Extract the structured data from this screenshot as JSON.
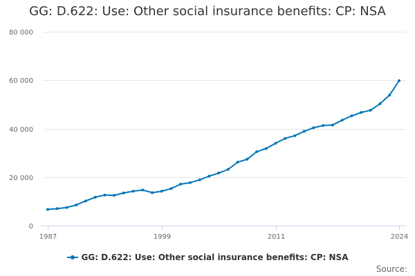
{
  "chart_data": {
    "type": "line",
    "title": "GG: D.622: Use: Other social insurance benefits: CP: NSA",
    "xlabel": "",
    "ylabel": "",
    "xlim": [
      1987,
      2024
    ],
    "ylim": [
      0,
      80000
    ],
    "y_ticks": [
      0,
      20000,
      40000,
      60000,
      80000
    ],
    "y_tick_labels": [
      "0",
      "20 000",
      "40 000",
      "60 000",
      "80 000"
    ],
    "x_ticks": [
      1987,
      1999,
      2011,
      2024
    ],
    "x_tick_labels": [
      "1987",
      "1999",
      "2011",
      "2024"
    ],
    "grid": true,
    "legend_position": "bottom",
    "series": [
      {
        "name": "GG: D.622: Use: Other social insurance benefits: CP: NSA",
        "color": "#0076b6",
        "x": [
          1987,
          1988,
          1989,
          1990,
          1991,
          1992,
          1993,
          1994,
          1995,
          1996,
          1997,
          1998,
          1999,
          2000,
          2001,
          2002,
          2003,
          2004,
          2005,
          2006,
          2007,
          2008,
          2009,
          2010,
          2011,
          2012,
          2013,
          2014,
          2015,
          2016,
          2017,
          2018,
          2019,
          2020,
          2021,
          2022,
          2023,
          2024
        ],
        "values": [
          6700,
          7000,
          7500,
          8500,
          10200,
          11700,
          12600,
          12500,
          13500,
          14200,
          14700,
          13600,
          14200,
          15300,
          17100,
          17700,
          18900,
          20400,
          21700,
          23200,
          26200,
          27400,
          30500,
          31800,
          34000,
          36000,
          37100,
          38900,
          40400,
          41300,
          41500,
          43500,
          45300,
          46700,
          47600,
          50300,
          53900,
          59800
        ]
      }
    ]
  },
  "legend": {
    "label": "GG: D.622: Use: Other social insurance benefits: CP: NSA"
  },
  "source": {
    "label": "Source:"
  }
}
